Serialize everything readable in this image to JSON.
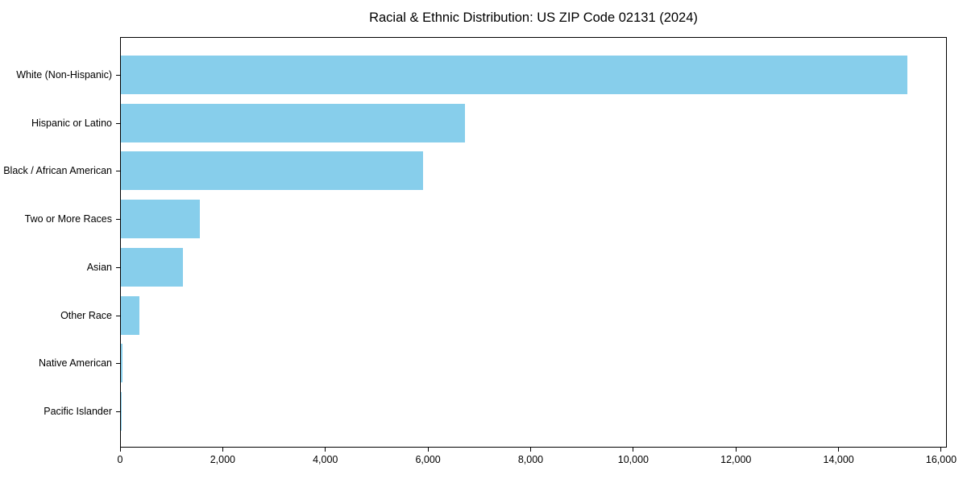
{
  "chart_data": {
    "type": "bar",
    "orientation": "horizontal",
    "title": "Racial & Ethnic Distribution: US ZIP Code 02131 (2024)",
    "categories": [
      "White (Non-Hispanic)",
      "Hispanic or Latino",
      "Black / African American",
      "Two or More Races",
      "Asian",
      "Other Race",
      "Native American",
      "Pacific Islander"
    ],
    "values": [
      15350,
      6720,
      5900,
      1540,
      1210,
      360,
      25,
      10
    ],
    "xlabel": "",
    "ylabel": "",
    "xlim": [
      0,
      16110
    ],
    "xticks": [
      0,
      2000,
      4000,
      6000,
      8000,
      10000,
      12000,
      14000,
      16000
    ],
    "xtick_labels": [
      "0",
      "2,000",
      "4,000",
      "6,000",
      "8,000",
      "10,000",
      "12,000",
      "14,000",
      "16,000"
    ],
    "bar_color": "#87CEEB",
    "spine_color": "#000000",
    "grid": false,
    "legend_position": "none"
  }
}
